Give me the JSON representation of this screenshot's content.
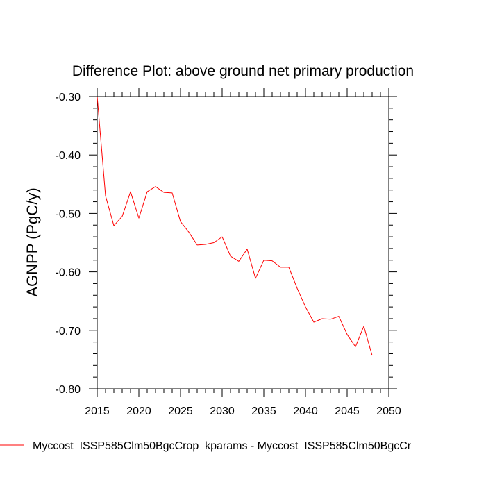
{
  "chart_data": {
    "type": "line",
    "title": "Difference Plot: above ground net primary production",
    "xlabel": "",
    "ylabel": "AGNPP  (PgC/y)",
    "xlim": [
      2015,
      2050
    ],
    "ylim": [
      -0.8,
      -0.3
    ],
    "x_ticks": [
      2015,
      2020,
      2025,
      2030,
      2035,
      2040,
      2045,
      2050
    ],
    "x_tick_labels": [
      "2015",
      "2020",
      "2025",
      "2030",
      "2035",
      "2040",
      "2045",
      "2050"
    ],
    "y_ticks": [
      -0.3,
      -0.4,
      -0.5,
      -0.6,
      -0.7,
      -0.8
    ],
    "y_tick_labels": [
      "-0.30",
      "-0.40",
      "-0.50",
      "-0.60",
      "-0.70",
      "-0.80"
    ],
    "grid": false,
    "legend_position": "bottom-left",
    "series": [
      {
        "name": "Myccost_ISSP585Clm50BgcCrop_kparams - Myccost_ISSP585Clm50BgcCr",
        "color": "#ff0000",
        "x": [
          2015,
          2016,
          2017,
          2018,
          2019,
          2020,
          2021,
          2022,
          2023,
          2024,
          2025,
          2026,
          2027,
          2028,
          2029,
          2030,
          2031,
          2032,
          2033,
          2034,
          2035,
          2036,
          2037,
          2038,
          2039,
          2040,
          2041,
          2042,
          2043,
          2044,
          2045,
          2046,
          2047,
          2048
        ],
        "values": [
          -0.3,
          -0.47,
          -0.521,
          -0.505,
          -0.463,
          -0.508,
          -0.463,
          -0.454,
          -0.464,
          -0.465,
          -0.514,
          -0.532,
          -0.554,
          -0.553,
          -0.55,
          -0.54,
          -0.573,
          -0.582,
          -0.561,
          -0.611,
          -0.58,
          -0.581,
          -0.592,
          -0.592,
          -0.628,
          -0.66,
          -0.686,
          -0.68,
          -0.681,
          -0.676,
          -0.707,
          -0.728,
          -0.693,
          -0.743
        ]
      }
    ]
  }
}
